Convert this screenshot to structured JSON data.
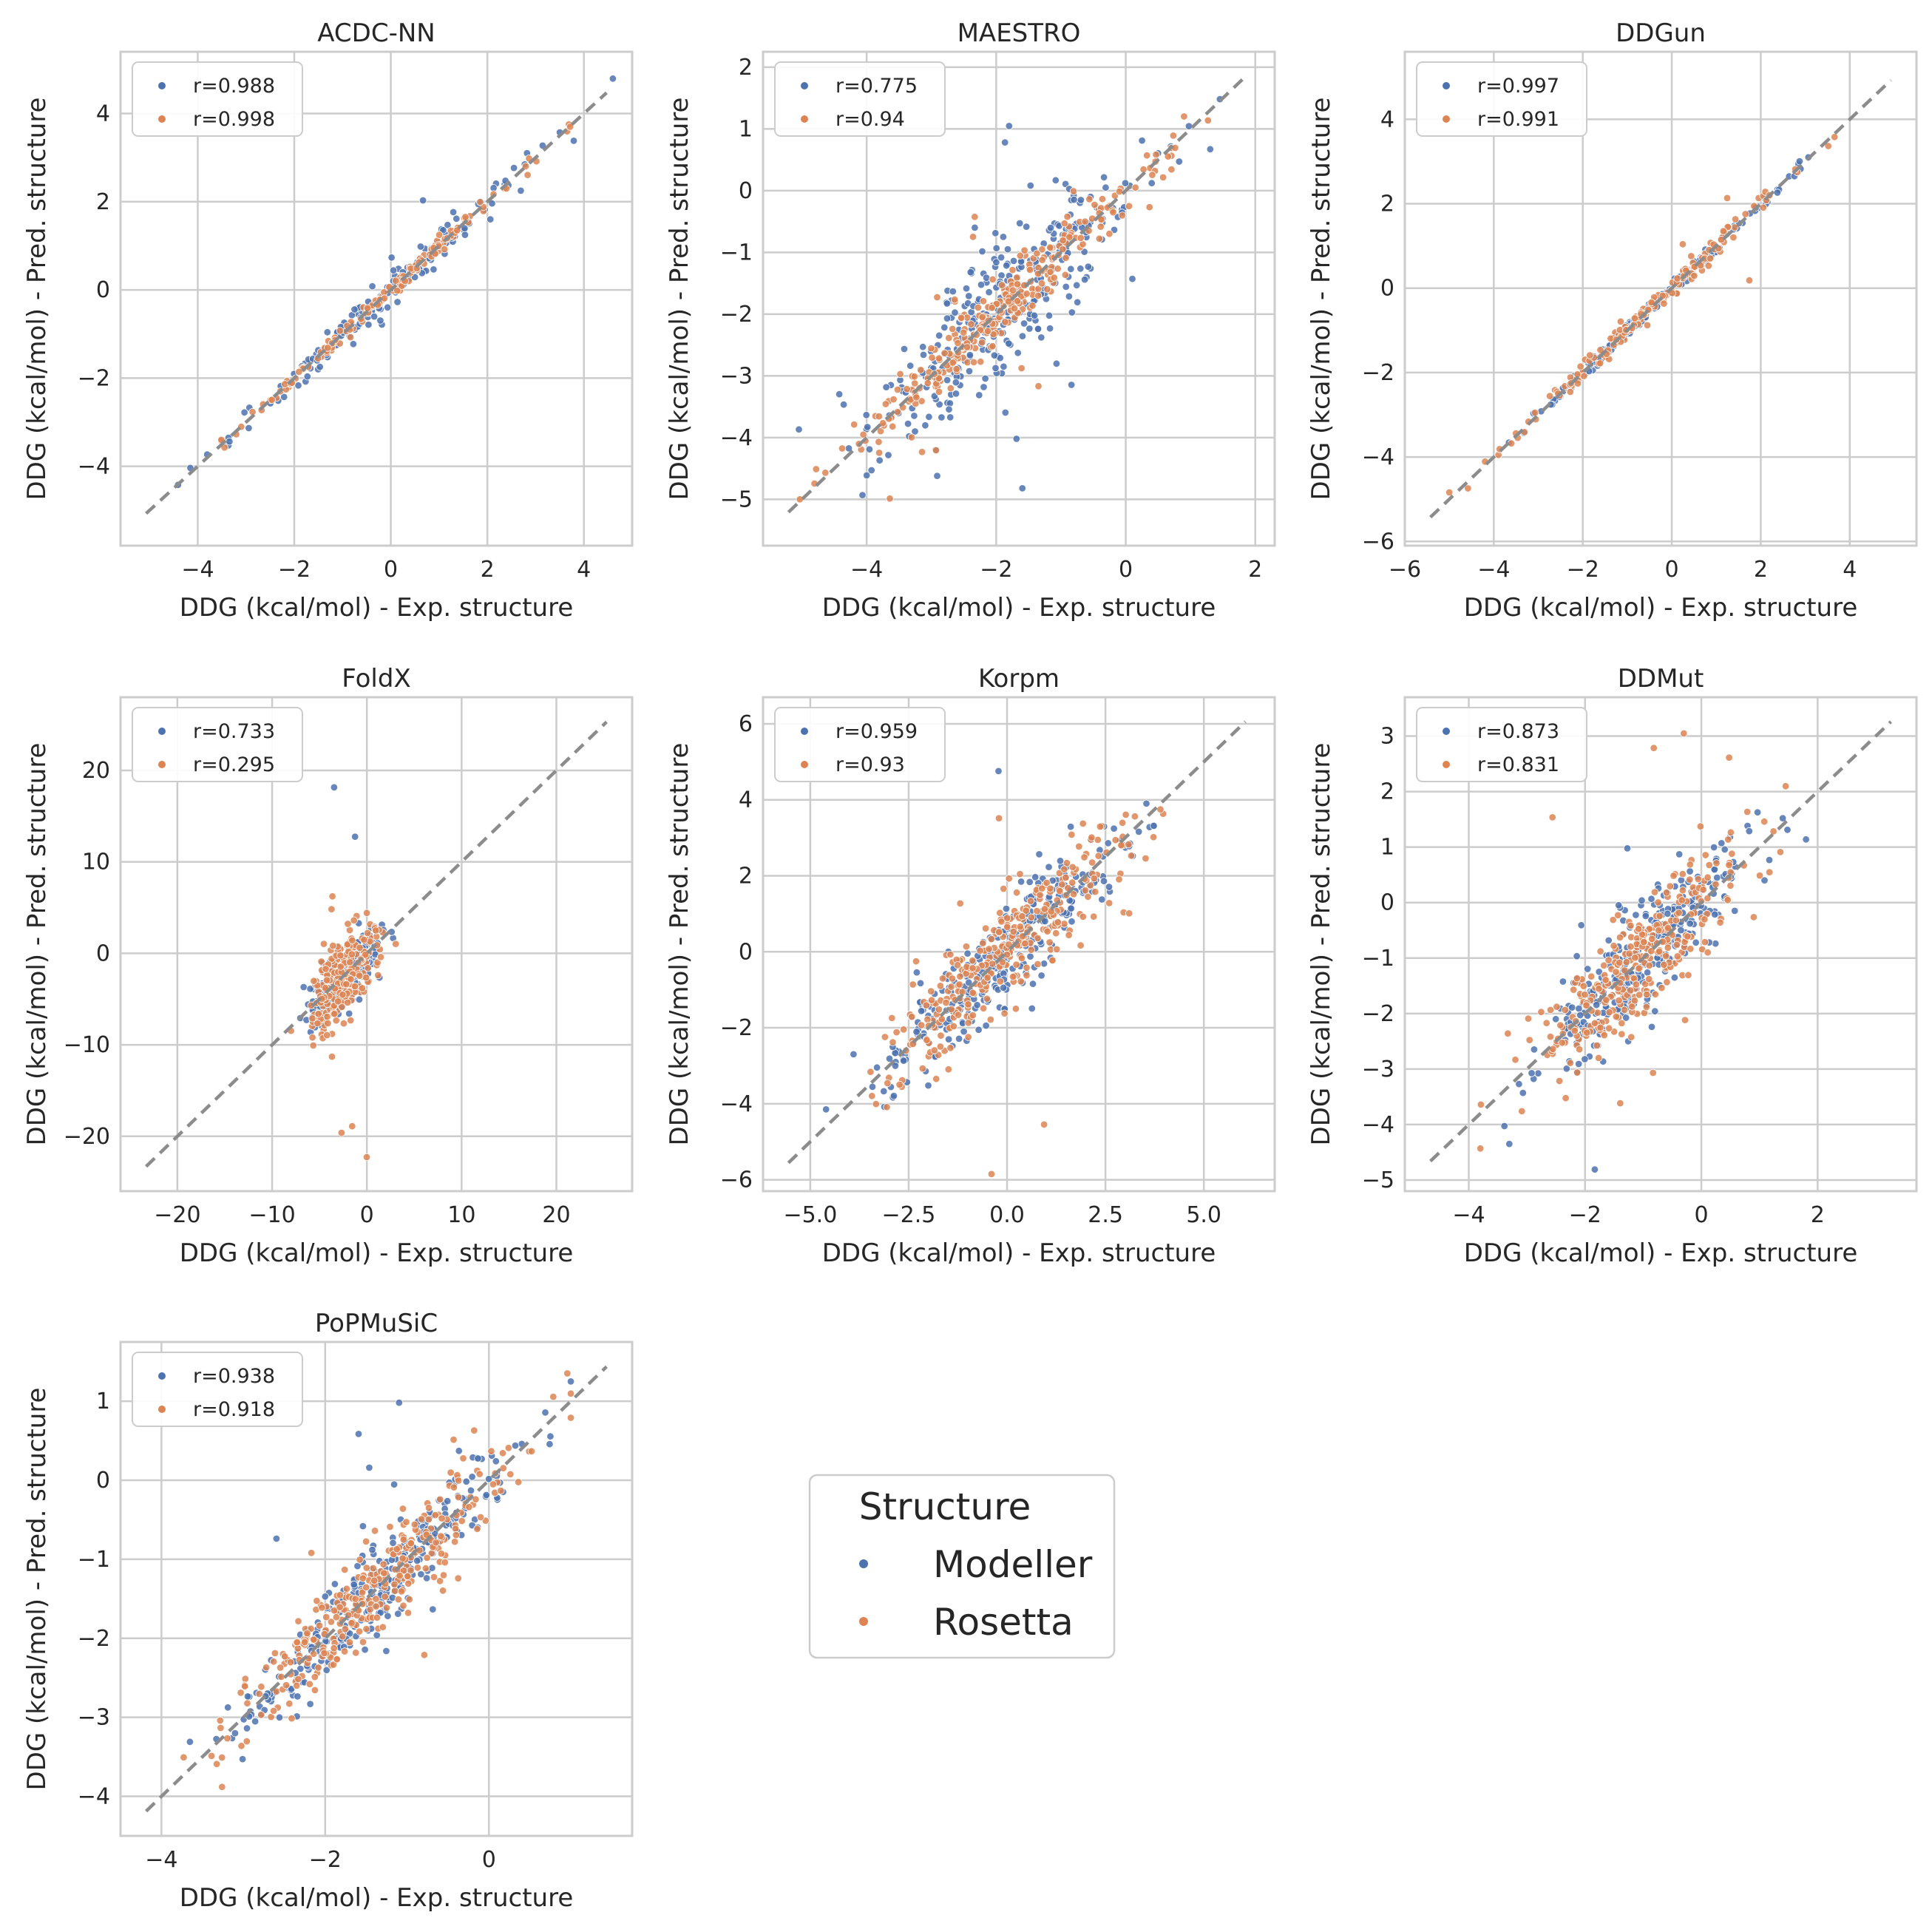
{
  "colors": {
    "modeller": "#4c72b0",
    "rosetta": "#dd8452",
    "grid": "#cccccc",
    "diag": "#8c8c8c",
    "text": "#262626"
  },
  "figure_legend": {
    "title": "Structure",
    "items": [
      "Modeller",
      "Rosetta"
    ]
  },
  "chart_data": [
    {
      "type": "scatter",
      "title": "ACDC-NN",
      "xlabel": "DDG (kcal/mol) - Exp. structure",
      "ylabel": "DDG (kcal/mol) - Pred. structure",
      "xlim": [
        -5.6,
        5.0
      ],
      "ylim": [
        -5.8,
        5.4
      ],
      "xticks": [
        -4,
        -2,
        0,
        2,
        4
      ],
      "yticks": [
        -4,
        -2,
        0,
        2,
        4
      ],
      "series": [
        {
          "name": "Modeller",
          "legend": "r=0.988",
          "spread": 0.22,
          "outlier_rate": 0.02,
          "n": 160,
          "range": [
            -4.6,
            4.6
          ],
          "sd": 1.6
        },
        {
          "name": "Rosetta",
          "legend": "r=0.998",
          "spread": 0.08,
          "outlier_rate": 0.0,
          "n": 160,
          "range": [
            -4.6,
            4.6
          ],
          "sd": 1.6
        }
      ]
    },
    {
      "type": "scatter",
      "title": "MAESTRO",
      "xlabel": "DDG (kcal/mol) - Exp. structure",
      "ylabel": "DDG (kcal/mol) - Pred. structure",
      "xlim": [
        -5.6,
        2.3
      ],
      "ylim": [
        -5.75,
        2.25
      ],
      "xticks": [
        -4,
        -2,
        0,
        2
      ],
      "yticks": [
        -5,
        -4,
        -3,
        -2,
        -1,
        0,
        1,
        2
      ],
      "series": [
        {
          "name": "Modeller",
          "legend": "r=0.775",
          "spread": 0.55,
          "outlier_rate": 0.1,
          "n": 320,
          "range": [
            -5.3,
            1.5
          ],
          "sd": 1.1
        },
        {
          "name": "Rosetta",
          "legend": "r=0.94",
          "spread": 0.25,
          "outlier_rate": 0.03,
          "n": 320,
          "range": [
            -5.3,
            1.5
          ],
          "sd": 1.1
        }
      ]
    },
    {
      "type": "scatter",
      "title": "DDGun",
      "xlabel": "DDG (kcal/mol) - Exp. structure",
      "ylabel": "DDG (kcal/mol) - Pred. structure",
      "xlim": [
        -6.0,
        5.5
      ],
      "ylim": [
        -6.1,
        5.6
      ],
      "xticks": [
        -6,
        -4,
        -2,
        0,
        2,
        4
      ],
      "yticks": [
        -6,
        -4,
        -2,
        0,
        2,
        4
      ],
      "series": [
        {
          "name": "Modeller",
          "legend": "r=0.997",
          "spread": 0.08,
          "outlier_rate": 0.0,
          "n": 170,
          "range": [
            -5.0,
            4.0
          ],
          "sd": 1.5
        },
        {
          "name": "Rosetta",
          "legend": "r=0.991",
          "spread": 0.12,
          "outlier_rate": 0.02,
          "n": 170,
          "range": [
            -5.0,
            4.0
          ],
          "sd": 1.5
        }
      ]
    },
    {
      "type": "scatter",
      "title": "FoldX",
      "xlabel": "DDG (kcal/mol) - Exp. structure",
      "ylabel": "DDG (kcal/mol) - Pred. structure",
      "xlim": [
        -26,
        28
      ],
      "ylim": [
        -26,
        28
      ],
      "xticks": [
        -20,
        -10,
        0,
        10,
        20
      ],
      "yticks": [
        -20,
        -10,
        0,
        10,
        20
      ],
      "series": [
        {
          "name": "Modeller",
          "legend": "r=0.733",
          "spread": 1.6,
          "outlier_rate": 0.02,
          "n": 260,
          "range": [
            -9,
            4
          ],
          "sd": 1.8
        },
        {
          "name": "Rosetta",
          "legend": "r=0.295",
          "spread": 2.2,
          "outlier_rate": 0.03,
          "n": 260,
          "range": [
            -9,
            4
          ],
          "sd": 1.8
        }
      ]
    },
    {
      "type": "scatter",
      "title": "Korpm",
      "xlabel": "DDG (kcal/mol) - Exp. structure",
      "ylabel": "DDG (kcal/mol) - Pred. structure",
      "xlim": [
        -6.2,
        6.8
      ],
      "ylim": [
        -6.3,
        6.7
      ],
      "xticks": [
        -5.0,
        -2.5,
        0.0,
        2.5,
        5.0
      ],
      "yticks": [
        -6,
        -4,
        -2,
        0,
        2,
        4,
        6
      ],
      "series": [
        {
          "name": "Modeller",
          "legend": "r=0.959",
          "spread": 0.6,
          "outlier_rate": 0.01,
          "n": 330,
          "range": [
            -4.6,
            4.5
          ],
          "sd": 1.6
        },
        {
          "name": "Rosetta",
          "legend": "r=0.93",
          "spread": 0.7,
          "outlier_rate": 0.02,
          "n": 330,
          "range": [
            -4.6,
            4.5
          ],
          "sd": 1.6
        }
      ]
    },
    {
      "type": "scatter",
      "title": "DDMut",
      "xlabel": "DDG (kcal/mol) - Exp. structure",
      "ylabel": "DDG (kcal/mol) - Pred. structure",
      "xlim": [
        -5.1,
        3.7
      ],
      "ylim": [
        -5.2,
        3.7
      ],
      "xticks": [
        -4,
        -2,
        0,
        2
      ],
      "yticks": [
        -5,
        -4,
        -3,
        -2,
        -1,
        0,
        1,
        2,
        3
      ],
      "series": [
        {
          "name": "Modeller",
          "legend": "r=0.873",
          "spread": 0.45,
          "outlier_rate": 0.02,
          "n": 320,
          "range": [
            -3.8,
            1.8
          ],
          "sd": 0.9
        },
        {
          "name": "Rosetta",
          "legend": "r=0.831",
          "spread": 0.5,
          "outlier_rate": 0.04,
          "n": 320,
          "range": [
            -3.8,
            1.8
          ],
          "sd": 0.9
        }
      ]
    },
    {
      "type": "scatter",
      "title": "PoPMuSiC",
      "xlabel": "DDG (kcal/mol) - Exp. structure",
      "ylabel": "DDG (kcal/mol) - Pred. structure",
      "xlim": [
        -4.5,
        1.75
      ],
      "ylim": [
        -4.5,
        1.75
      ],
      "xticks": [
        -4,
        -2,
        0
      ],
      "yticks": [
        -4,
        -3,
        -2,
        -1,
        0,
        1
      ],
      "series": [
        {
          "name": "Modeller",
          "legend": "r=0.938",
          "spread": 0.25,
          "outlier_rate": 0.02,
          "n": 320,
          "range": [
            -3.9,
            1.0
          ],
          "sd": 0.85
        },
        {
          "name": "Rosetta",
          "legend": "r=0.918",
          "spread": 0.28,
          "outlier_rate": 0.03,
          "n": 320,
          "range": [
            -3.9,
            1.0
          ],
          "sd": 0.85
        }
      ]
    }
  ]
}
